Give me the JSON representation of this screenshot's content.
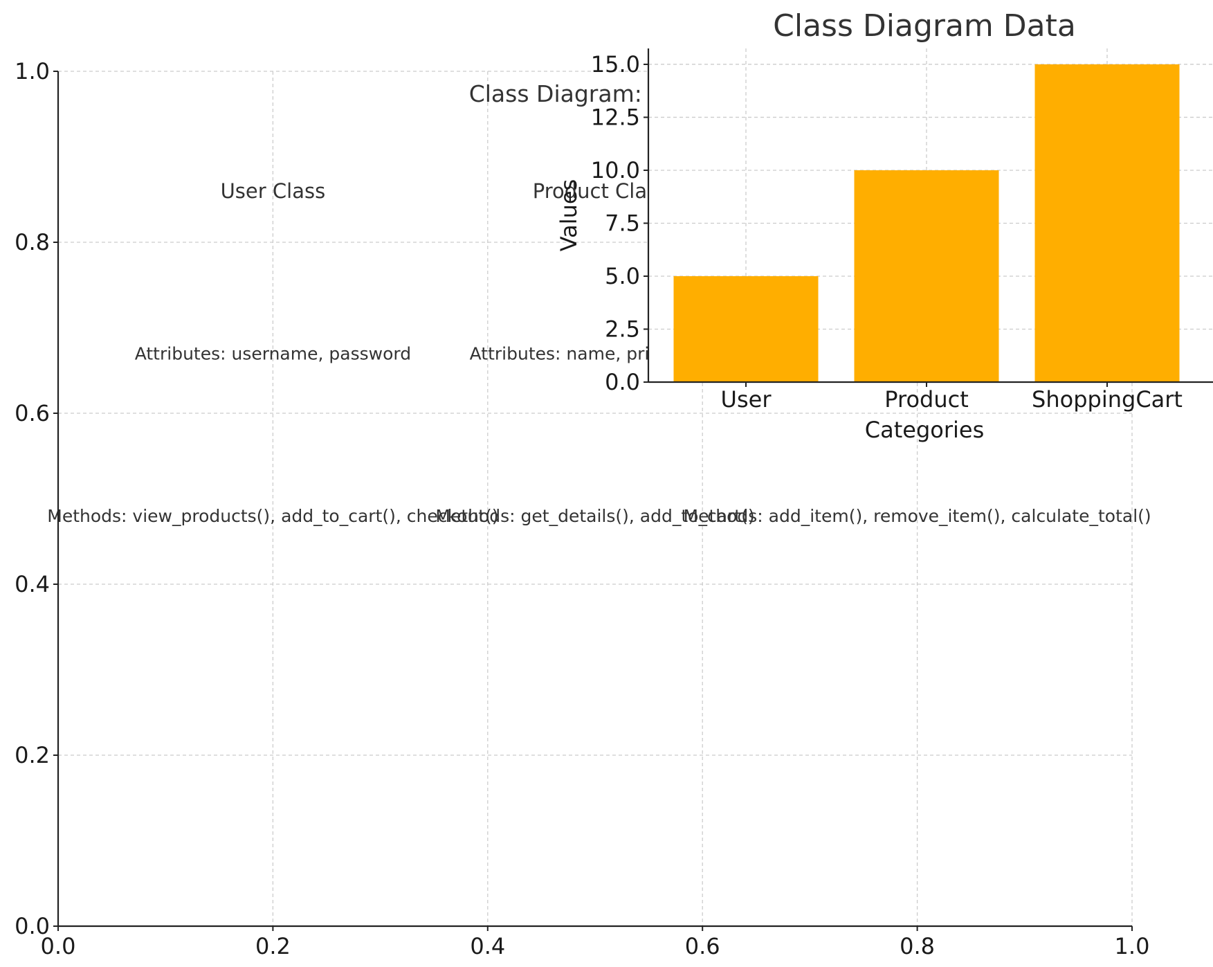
{
  "chart_data": [
    {
      "type": "scatter",
      "title": "Class Diagram: Shopp",
      "xlim": [
        0,
        1
      ],
      "ylim": [
        0,
        1
      ],
      "xticks": [
        "0.0",
        "0.2",
        "0.4",
        "0.6",
        "0.8",
        "1.0"
      ],
      "yticks": [
        "0.0",
        "0.2",
        "0.4",
        "0.6",
        "0.8",
        "1.0"
      ],
      "grid": true,
      "annotations": [
        {
          "text": "User Class",
          "x": 0.2,
          "y": 0.86
        },
        {
          "text": "Product Clas",
          "x": 0.5,
          "y": 0.86
        },
        {
          "text": "Attributes: username, password",
          "x": 0.2,
          "y": 0.67
        },
        {
          "text": "Attributes: name, price, desc",
          "x": 0.5,
          "y": 0.67
        },
        {
          "text": "Methods: view_products(), add_to_cart(), checkout()",
          "x": 0.2,
          "y": 0.48
        },
        {
          "text": "Methods: get_details(), add_to_cart()",
          "x": 0.5,
          "y": 0.48
        },
        {
          "text": "Methods: add_item(), remove_item(), calculate_total()",
          "x": 0.8,
          "y": 0.48
        }
      ]
    },
    {
      "type": "bar",
      "title": "Class Diagram Data",
      "xlabel": "Categories",
      "ylabel": "Values",
      "categories": [
        "User",
        "Product",
        "ShoppingCart"
      ],
      "values": [
        5,
        10,
        15
      ],
      "ylim": [
        0,
        15.75
      ],
      "yticks": [
        0,
        2.5,
        5,
        7.5,
        10,
        12.5,
        15
      ],
      "ytick_labels": [
        "0.0",
        "2.5",
        "5.0",
        "7.5",
        "10.0",
        "12.5",
        "15.0"
      ],
      "bar_color": "#ffae00",
      "grid": true
    }
  ]
}
